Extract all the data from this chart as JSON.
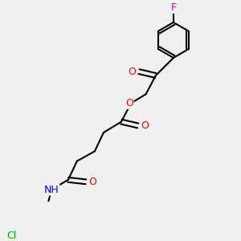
{
  "background_color": "#f0f0f0",
  "bond_color": "#000000",
  "bond_width": 1.5,
  "atom_colors": {
    "O": "#ff0000",
    "N": "#0000ff",
    "F": "#cc00cc",
    "Cl": "#00aa00",
    "H": "#555555",
    "C": "#000000"
  },
  "font_size": 9,
  "figsize": [
    3.0,
    3.0
  ],
  "dpi": 100,
  "xlim": [
    0,
    10
  ],
  "ylim": [
    0,
    10
  ]
}
